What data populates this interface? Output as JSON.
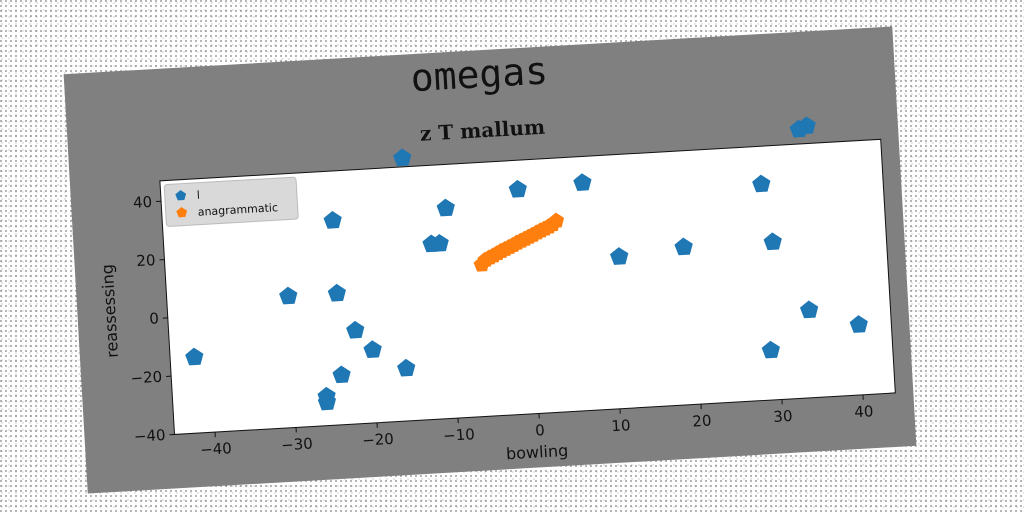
{
  "figure": {
    "title": "omegas"
  },
  "chart_data": {
    "type": "scatter",
    "title": "z T mallum",
    "xlabel": "bowling",
    "ylabel": "reassessing",
    "xlim": [
      -45,
      44
    ],
    "ylim": [
      -40,
      47
    ],
    "xticks": [
      -40,
      -30,
      -20,
      -10,
      0,
      10,
      20,
      30,
      40
    ],
    "yticks": [
      -40,
      -20,
      0,
      20,
      40
    ],
    "grid": false,
    "legend_position": "top-left",
    "series": [
      {
        "name": "l",
        "color": "#1f77b4",
        "marker": "pentagon",
        "x": [
          -41,
          -42,
          -30,
          -24,
          -24,
          -15,
          -12,
          -11,
          -10,
          -1,
          7,
          -22,
          -20,
          -24,
          -26,
          -26,
          -16,
          11,
          19,
          29,
          30,
          34,
          34,
          35,
          40,
          29
        ],
        "y": [
          35,
          -14,
          5,
          30,
          5,
          50,
          20,
          20,
          32,
          37,
          38,
          -8,
          -15,
          -23,
          -30,
          -32,
          -22,
          12,
          14,
          34,
          14,
          52,
          -10,
          53,
          -16,
          -23
        ]
      },
      {
        "name": "anagrammatic",
        "color": "#ff7f0e",
        "marker": "pentagon",
        "x": [
          -6,
          -5.5,
          -5,
          -4.5,
          -4,
          -3.5,
          -3,
          -2.5,
          -2,
          -1.5,
          -1,
          -0.5,
          0,
          0.5,
          1,
          1.5,
          2,
          2.5,
          3,
          3.5
        ],
        "y": [
          12,
          13.5,
          14.2,
          14.8,
          15.5,
          16.2,
          16.8,
          17.4,
          18,
          18.7,
          19.3,
          19.9,
          20.5,
          21.1,
          21.8,
          22.4,
          23,
          23.6,
          24.3,
          25.5
        ]
      }
    ]
  }
}
